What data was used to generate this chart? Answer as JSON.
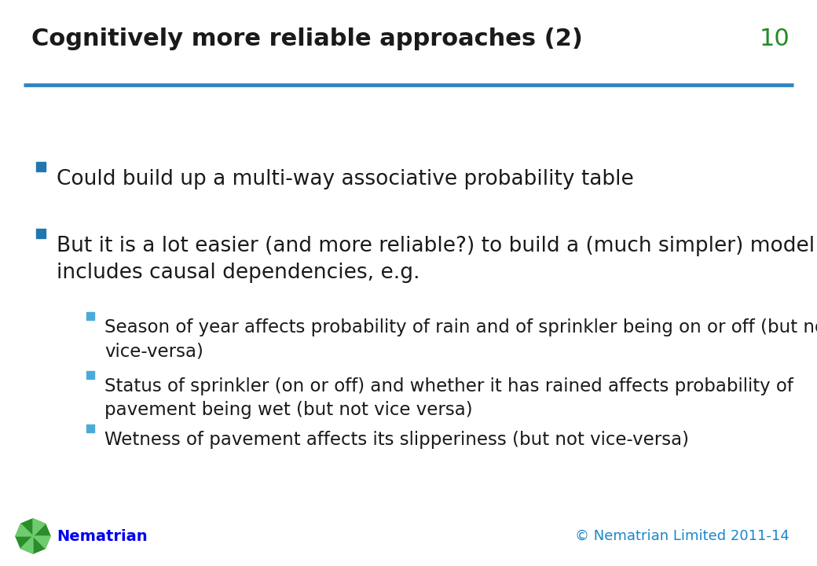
{
  "title": "Cognitively more reliable approaches (2)",
  "slide_number": "10",
  "title_color": "#1a1a1a",
  "title_fontsize": 22,
  "top_line_color": "#2E86C1",
  "background_color": "#ffffff",
  "bullet_color": "#2176AE",
  "sub_bullet_color": "#4AABDB",
  "text_color": "#1a1a1a",
  "footer_left": "Nematrian",
  "footer_left_color": "#0000EE",
  "footer_right": "© Nematrian Limited 2011-14",
  "footer_right_color": "#1A86C8",
  "slide_number_color": "#228B22",
  "bullet1": "Could build up a multi-way associative probability table",
  "bullet2_line1": "But it is a lot easier (and more reliable?) to build a (much simpler) model that",
  "bullet2_line2": "includes causal dependencies, e.g.",
  "sub1_line1": "Season of year affects probability of rain and of sprinkler being on or off (but not",
  "sub1_line2": "vice-versa)",
  "sub2_line1": "Status of sprinkler (on or off) and whether it has rained affects probability of",
  "sub2_line2": "pavement being wet (but not vice versa)",
  "sub3": "Wetness of pavement affects its slipperiness (but not vice-versa)",
  "main_fontsize": 19,
  "sub_fontsize": 16.5
}
